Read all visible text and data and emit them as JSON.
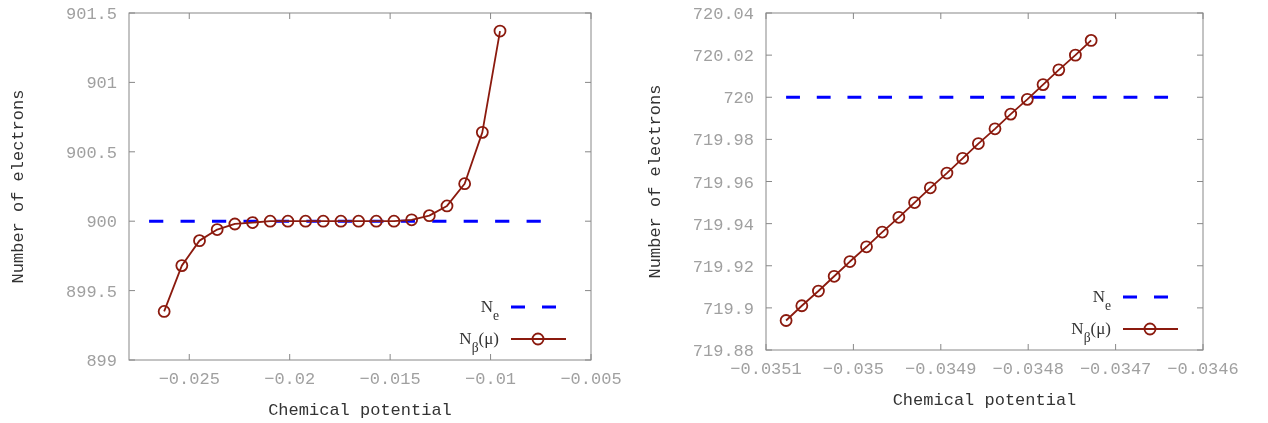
{
  "chart_data": [
    {
      "type": "line",
      "xlabel": "Chemical potential",
      "ylabel": "Number of electrons",
      "xlim": [
        -0.028,
        -0.005
      ],
      "ylim": [
        899,
        901.5
      ],
      "xticks": [
        -0.025,
        -0.02,
        -0.015,
        -0.01,
        -0.005
      ],
      "yticks": [
        899,
        899.5,
        900,
        900.5,
        901,
        901.5
      ],
      "grid": false,
      "legend": "bottom right",
      "series": [
        {
          "name": "N$_{e}$",
          "color": "#0000ff",
          "line_style": "dashed",
          "marker": "none",
          "x": [
            -0.027,
            -0.0075
          ],
          "values": [
            900,
            900
          ]
        },
        {
          "name": "N$_{β}$(μ)",
          "color": "#8b1a0e",
          "line_style": "solid",
          "marker": "circle",
          "x": [
            -0.02625,
            -0.02537,
            -0.02449,
            -0.02361,
            -0.02273,
            -0.02185,
            -0.02097,
            -0.02009,
            -0.01921,
            -0.01833,
            -0.01745,
            -0.01657,
            -0.01569,
            -0.01481,
            -0.01393,
            -0.01305,
            -0.01217,
            -0.01129,
            -0.01041,
            -0.00953
          ],
          "values": [
            899.35,
            899.68,
            899.86,
            899.94,
            899.98,
            899.99,
            900,
            900,
            900,
            900,
            900,
            900,
            900,
            900,
            900.01,
            900.04,
            900.11,
            900.27,
            900.64,
            901.37
          ]
        }
      ]
    },
    {
      "type": "line",
      "xlabel": "Chemical potential",
      "ylabel": "Number of electrons",
      "xlim": [
        -0.0351,
        -0.0346
      ],
      "ylim": [
        719.88,
        720.04
      ],
      "xticks": [
        -0.0351,
        -0.035,
        -0.0349,
        -0.0348,
        -0.0347,
        -0.0346
      ],
      "yticks": [
        719.88,
        719.9,
        719.92,
        719.94,
        719.96,
        719.98,
        720,
        720.02,
        720.04
      ],
      "grid": false,
      "legend": "bottom right",
      "series": [
        {
          "name": "N$_{e}$",
          "color": "#0000ff",
          "line_style": "dashed",
          "marker": "none",
          "x": [
            -0.035077,
            -0.03464
          ],
          "values": [
            720,
            720
          ]
        },
        {
          "name": "N$_{β}$(μ)",
          "color": "#8b1a0e",
          "line_style": "solid",
          "marker": "circle",
          "x": [
            -0.035077,
            -0.035059,
            -0.03504,
            -0.035022,
            -0.035004,
            -0.034985,
            -0.034967,
            -0.034948,
            -0.03493,
            -0.034912,
            -0.034893,
            -0.034875,
            -0.034857,
            -0.034838,
            -0.03482,
            -0.034801,
            -0.034783,
            -0.034765,
            -0.034746,
            -0.034728
          ],
          "values": [
            719.894,
            719.901,
            719.908,
            719.915,
            719.922,
            719.929,
            719.936,
            719.943,
            719.95,
            719.957,
            719.964,
            719.971,
            719.978,
            719.985,
            719.992,
            719.999,
            720.006,
            720.013,
            720.02,
            720.027
          ]
        }
      ]
    }
  ]
}
